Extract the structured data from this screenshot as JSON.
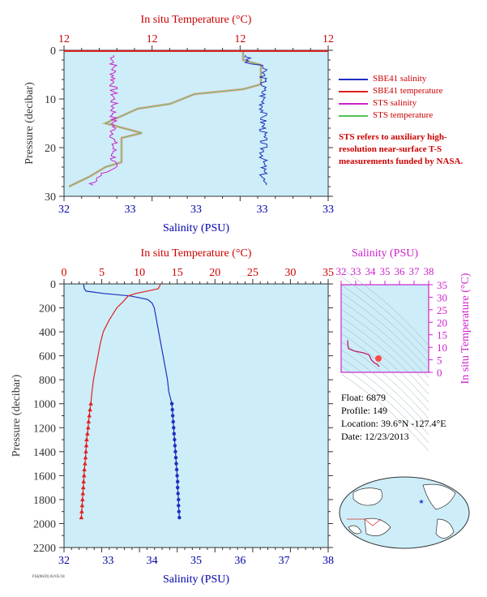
{
  "colors": {
    "plot_bg": "#cdeef8",
    "salinity": "#1f2fbf",
    "temperature": "#e02020",
    "sts_salinity": "#cc22cc",
    "sts_temperature": "#55c055",
    "sts_temperature_fill": "#f29a9a",
    "axis_temp": "#cc0000",
    "axis_sal": "#0000aa",
    "axis_pres": "#333333",
    "ts_axis": "#cc22cc"
  },
  "chart_data": [
    {
      "type": "line",
      "title": "",
      "top_axis": {
        "label": "In situ Temperature (°C)",
        "ticks": [
          "12",
          "12",
          "12",
          "12"
        ]
      },
      "bottom_axis": {
        "label": "Salinity (PSU)",
        "ticks": [
          "32",
          "33",
          "33",
          "33",
          "33"
        ]
      },
      "ylabel": "Pressure (decibar)",
      "yticks": [
        "0",
        "10",
        "20",
        "30"
      ],
      "ylim": [
        30,
        0
      ],
      "legend": [
        {
          "name": "SBE41 salinity",
          "color": "#1f2fbf"
        },
        {
          "name": "SBE41 temperature",
          "color": "#e02020"
        },
        {
          "name": "STS salinity",
          "color": "#cc22cc"
        },
        {
          "name": "STS temperature",
          "color": "#55c055"
        }
      ],
      "note": "STS refers to auxiliary high-resolution near-surface T-S measurements funded by NASA."
    },
    {
      "type": "line",
      "title": "",
      "top_axis": {
        "label": "In situ Temperature (°C)",
        "ticks": [
          "0",
          "5",
          "10",
          "15",
          "20",
          "25",
          "30",
          "35"
        ],
        "range": [
          0,
          35
        ]
      },
      "bottom_axis": {
        "label": "Salinity (PSU)",
        "ticks": [
          "32",
          "33",
          "34",
          "35",
          "36",
          "37",
          "38"
        ],
        "range": [
          32,
          38
        ]
      },
      "ylabel": "Pressure (decibar)",
      "yticks": [
        "0",
        "200",
        "400",
        "600",
        "800",
        "1000",
        "1200",
        "1400",
        "1600",
        "1800",
        "2000",
        "2200"
      ],
      "ylim": [
        2200,
        0
      ],
      "series": [
        {
          "name": "Salinity",
          "axis": "salinity",
          "points": [
            [
              32.45,
              0
            ],
            [
              32.45,
              20
            ],
            [
              32.46,
              40
            ],
            [
              32.5,
              60
            ],
            [
              32.9,
              80
            ],
            [
              33.5,
              100
            ],
            [
              33.9,
              130
            ],
            [
              34.0,
              160
            ],
            [
              34.05,
              200
            ],
            [
              34.1,
              300
            ],
            [
              34.15,
              400
            ],
            [
              34.2,
              500
            ],
            [
              34.25,
              600
            ],
            [
              34.3,
              700
            ],
            [
              34.35,
              800
            ],
            [
              34.38,
              900
            ],
            [
              34.45,
              1000
            ],
            [
              34.46,
              1050
            ],
            [
              34.47,
              1100
            ],
            [
              34.48,
              1150
            ],
            [
              34.49,
              1200
            ],
            [
              34.5,
              1250
            ],
            [
              34.51,
              1300
            ],
            [
              34.52,
              1350
            ],
            [
              34.53,
              1400
            ],
            [
              34.54,
              1450
            ],
            [
              34.55,
              1500
            ],
            [
              34.56,
              1550
            ],
            [
              34.57,
              1600
            ],
            [
              34.58,
              1650
            ],
            [
              34.58,
              1700
            ],
            [
              34.59,
              1750
            ],
            [
              34.6,
              1800
            ],
            [
              34.6,
              1850
            ],
            [
              34.61,
              1900
            ],
            [
              34.62,
              1950
            ]
          ],
          "marker_start": 1000
        },
        {
          "name": "Temperature",
          "axis": "temperature",
          "points": [
            [
              12.8,
              0
            ],
            [
              12.5,
              40
            ],
            [
              11.0,
              60
            ],
            [
              9.5,
              80
            ],
            [
              8.5,
              100
            ],
            [
              7.8,
              150
            ],
            [
              7.0,
              200
            ],
            [
              6.0,
              300
            ],
            [
              5.2,
              400
            ],
            [
              4.8,
              500
            ],
            [
              4.5,
              600
            ],
            [
              4.2,
              700
            ],
            [
              3.9,
              800
            ],
            [
              3.7,
              900
            ],
            [
              3.55,
              1000
            ],
            [
              3.45,
              1050
            ],
            [
              3.35,
              1100
            ],
            [
              3.25,
              1150
            ],
            [
              3.2,
              1200
            ],
            [
              3.1,
              1250
            ],
            [
              3.0,
              1300
            ],
            [
              2.95,
              1350
            ],
            [
              2.9,
              1400
            ],
            [
              2.85,
              1450
            ],
            [
              2.78,
              1500
            ],
            [
              2.7,
              1550
            ],
            [
              2.65,
              1600
            ],
            [
              2.6,
              1650
            ],
            [
              2.55,
              1700
            ],
            [
              2.5,
              1750
            ],
            [
              2.45,
              1800
            ],
            [
              2.4,
              1850
            ],
            [
              2.35,
              1900
            ],
            [
              2.3,
              1950
            ]
          ],
          "marker_start": 1000
        }
      ]
    },
    {
      "type": "line",
      "title": "",
      "top_axis": {
        "label": "Salinity (PSU)",
        "ticks": [
          "32",
          "33",
          "34",
          "35",
          "36",
          "37",
          "38"
        ],
        "range": [
          32,
          38
        ]
      },
      "right_axis": {
        "label": "In situ Temperature (°C)",
        "ticks": [
          "0",
          "5",
          "10",
          "15",
          "20",
          "25",
          "30",
          "35"
        ],
        "range": [
          0,
          35
        ]
      }
    }
  ],
  "float_info": {
    "float": "Float:  6879",
    "profile": "Profile:  149",
    "location": "Location:  39.6°N  -127.4°E",
    "date": "Date:  12/23/2013"
  },
  "footer": "FSI(06/D) 02/05/18"
}
